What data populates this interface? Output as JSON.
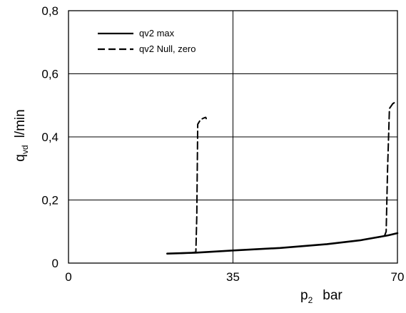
{
  "chart_data": {
    "type": "line",
    "title": "",
    "xlabel": {
      "main": "p",
      "sub": "2",
      "unit": "bar"
    },
    "ylabel": {
      "main": "q",
      "sub": "vd",
      "unit": "l/min"
    },
    "xlim": [
      0,
      70
    ],
    "ylim": [
      0,
      0.8
    ],
    "xticks": [
      0,
      35,
      70
    ],
    "xtick_labels": [
      "0",
      "35",
      "70"
    ],
    "yticks": [
      0,
      0.2,
      0.4,
      0.6,
      0.8
    ],
    "ytick_labels": [
      "0",
      "0,2",
      "0,4",
      "0,6",
      "0,8"
    ],
    "grid": true,
    "legend_position": "top-left",
    "series": [
      {
        "name": "qv2 max",
        "style": "solid",
        "color": "#000000",
        "x": [
          21,
          27,
          35,
          45,
          55,
          62,
          68,
          70
        ],
        "y": [
          0.03,
          0.033,
          0.04,
          0.048,
          0.06,
          0.072,
          0.088,
          0.095
        ]
      },
      {
        "name": "qv2 Null, zero",
        "style": "dashed",
        "color": "#000000",
        "segments": [
          {
            "x": [
              24,
              26,
              27.1,
              27.3,
              27.5,
              28.1,
              28.8,
              29.2,
              29.3
            ],
            "y": [
              0.031,
              0.032,
              0.035,
              0.15,
              0.44,
              0.455,
              0.46,
              0.462,
              0.458
            ]
          },
          {
            "x": [
              65,
              67.2,
              67.6,
              67.9,
              68.3,
              69,
              69.5,
              69.7
            ],
            "y": [
              0.08,
              0.085,
              0.1,
              0.3,
              0.49,
              0.505,
              0.51,
              0.508
            ]
          }
        ]
      }
    ]
  }
}
